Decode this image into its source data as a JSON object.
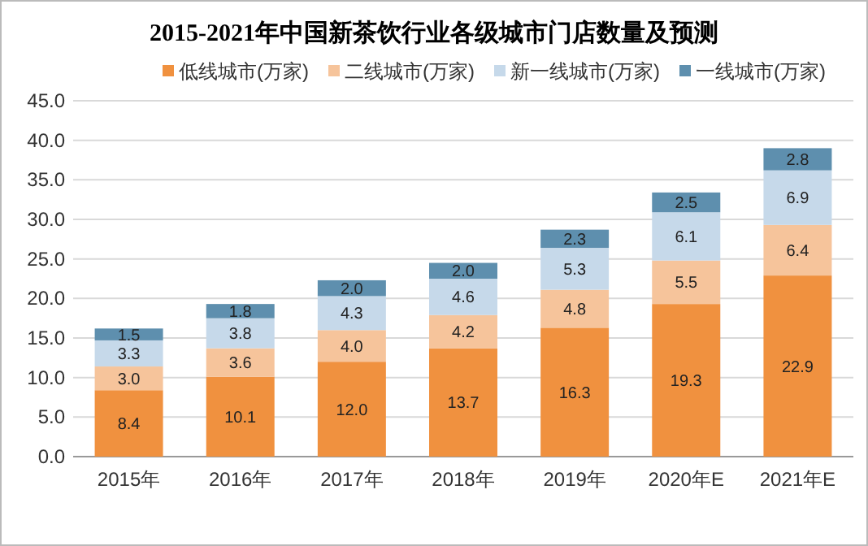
{
  "chart_data": {
    "type": "bar",
    "title": "2015-2021年中国新茶饮行业各级城市门店数量及预测",
    "stacked": true,
    "legend": "top",
    "grid": "y",
    "categories": [
      "2015年",
      "2016年",
      "2017年",
      "2018年",
      "2019年",
      "2020年E",
      "2021年E"
    ],
    "ylim": [
      0,
      45
    ],
    "yticks": [
      {
        "value": 0,
        "label": "0.0"
      },
      {
        "value": 5,
        "label": "5.0"
      },
      {
        "value": 10,
        "label": "10.0"
      },
      {
        "value": 15,
        "label": "15.0"
      },
      {
        "value": 20,
        "label": "20.0"
      },
      {
        "value": 25,
        "label": "25.0"
      },
      {
        "value": 30,
        "label": "30.0"
      },
      {
        "value": 35,
        "label": "35.0"
      },
      {
        "value": 40,
        "label": "40.0"
      },
      {
        "value": 45,
        "label": "45.0"
      }
    ],
    "series": [
      {
        "name": "低线城市(万家)",
        "color": "#f0913f",
        "values": [
          8.4,
          10.1,
          12.0,
          13.7,
          16.3,
          19.3,
          22.9
        ],
        "value_labels": [
          "8.4",
          "10.1",
          "12.0",
          "13.7",
          "16.3",
          "19.3",
          "22.9"
        ]
      },
      {
        "name": "二线城市(万家)",
        "color": "#f6c49b",
        "values": [
          3.0,
          3.6,
          4.0,
          4.2,
          4.8,
          5.5,
          6.4
        ],
        "value_labels": [
          "3.0",
          "3.6",
          "4.0",
          "4.2",
          "4.8",
          "5.5",
          "6.4"
        ]
      },
      {
        "name": "新一线城市(万家)",
        "color": "#c6d9ea",
        "values": [
          3.3,
          3.8,
          4.3,
          4.6,
          5.3,
          6.1,
          6.9
        ],
        "value_labels": [
          "3.3",
          "3.8",
          "4.3",
          "4.6",
          "5.3",
          "6.1",
          "6.9"
        ]
      },
      {
        "name": "一线城市(万家)",
        "color": "#5e8fae",
        "values": [
          1.5,
          1.8,
          2.0,
          2.0,
          2.3,
          2.5,
          2.8
        ],
        "value_labels": [
          "1.5",
          "1.8",
          "2.0",
          "2.0",
          "2.3",
          "2.5",
          "2.8"
        ]
      }
    ]
  }
}
